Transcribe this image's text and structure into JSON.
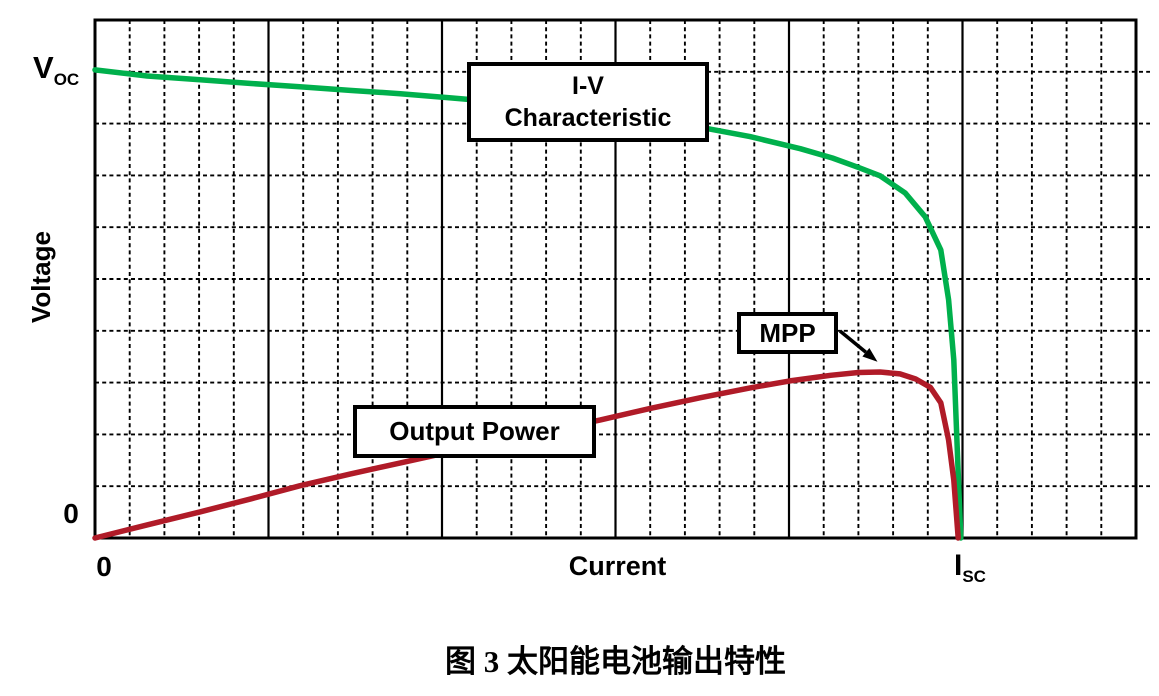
{
  "axes": {
    "y_label": "Voltage",
    "y_top_tick": {
      "main": "V",
      "sub": "OC"
    },
    "y_zero": "0",
    "x_label": "Current",
    "x_zero": "0",
    "x_right_tick": {
      "main": "I",
      "sub": "SC"
    }
  },
  "annotations": {
    "iv_box": {
      "line1": "I-V",
      "line2": "Characteristic"
    },
    "mpp_box": {
      "label": "MPP"
    },
    "power_box": {
      "label": "Output Power"
    }
  },
  "caption": "图 3 太阳能电池输出特性",
  "chart_data": {
    "type": "line",
    "title": "",
    "xlabel": "Current",
    "ylabel": "Voltage",
    "x_range": [
      0,
      1.2
    ],
    "y_range": [
      0,
      1.1111
    ],
    "x_units": "fraction of short-circuit current Isc",
    "y_units": "fraction of open-circuit voltage Voc",
    "grid": {
      "color": "#000000",
      "x_minor_step": 0.04,
      "x_major_every": 5,
      "y_minor_step": 0.11111,
      "style": "dotted minors; solid vertical majors; no horizontal majors"
    },
    "key_points": {
      "v_oc": {
        "x": 0,
        "y": 1.0
      },
      "i_sc": {
        "x": 1.0,
        "y": 0
      },
      "mpp": {
        "x": 0.9,
        "y": 0.356
      },
      "arrow_tip": {
        "x": 0.902,
        "y": 0.378
      }
    },
    "series": [
      {
        "id": "iv",
        "name": "I-V Characteristic",
        "color": "#00B04C",
        "points": [
          [
            0.0,
            1.004
          ],
          [
            0.06,
            0.991
          ],
          [
            0.121,
            0.983
          ],
          [
            0.18,
            0.975
          ],
          [
            0.236,
            0.968
          ],
          [
            0.294,
            0.96
          ],
          [
            0.352,
            0.953
          ],
          [
            0.41,
            0.944
          ],
          [
            0.467,
            0.935
          ],
          [
            0.525,
            0.924
          ],
          [
            0.582,
            0.912
          ],
          [
            0.64,
            0.898
          ],
          [
            0.698,
            0.881
          ],
          [
            0.755,
            0.861
          ],
          [
            0.813,
            0.835
          ],
          [
            0.85,
            0.815
          ],
          [
            0.88,
            0.795
          ],
          [
            0.905,
            0.777
          ],
          [
            0.934,
            0.74
          ],
          [
            0.957,
            0.689
          ],
          [
            0.975,
            0.618
          ],
          [
            0.984,
            0.511
          ],
          [
            0.99,
            0.382
          ],
          [
            0.994,
            0.189
          ],
          [
            0.996,
            0.095
          ],
          [
            0.998,
            0.0
          ]
        ]
      },
      {
        "id": "power",
        "name": "Output Power",
        "color": "#B01B28",
        "points": [
          [
            0.0,
            0.0
          ],
          [
            0.06,
            0.028
          ],
          [
            0.121,
            0.056
          ],
          [
            0.18,
            0.084
          ],
          [
            0.236,
            0.112
          ],
          [
            0.294,
            0.137
          ],
          [
            0.352,
            0.161
          ],
          [
            0.41,
            0.185
          ],
          [
            0.467,
            0.208
          ],
          [
            0.525,
            0.231
          ],
          [
            0.582,
            0.253
          ],
          [
            0.64,
            0.278
          ],
          [
            0.698,
            0.301
          ],
          [
            0.755,
            0.322
          ],
          [
            0.801,
            0.337
          ],
          [
            0.848,
            0.349
          ],
          [
            0.88,
            0.355
          ],
          [
            0.905,
            0.356
          ],
          [
            0.928,
            0.352
          ],
          [
            0.946,
            0.341
          ],
          [
            0.963,
            0.323
          ],
          [
            0.975,
            0.29
          ],
          [
            0.984,
            0.21
          ],
          [
            0.99,
            0.124
          ],
          [
            0.995,
            0.0
          ]
        ]
      }
    ]
  }
}
